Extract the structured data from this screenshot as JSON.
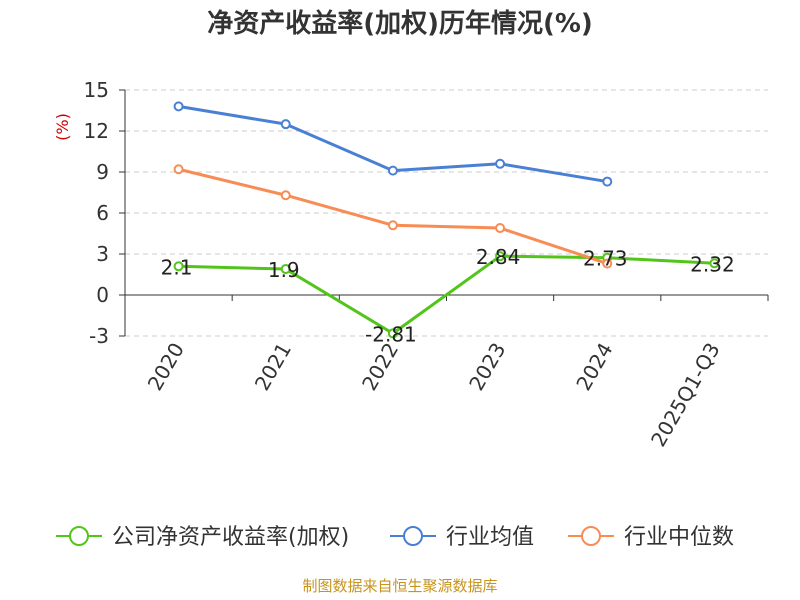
{
  "chart_data": {
    "type": "line",
    "title": "净资产收益率(加权)历年情况(%)",
    "ylabel": "(%)",
    "categories": [
      "2020",
      "2021",
      "2022",
      "2023",
      "2024",
      "2025Q1-Q3"
    ],
    "yticks": [
      "15",
      "12",
      "9",
      "6",
      "3",
      "0",
      "-3"
    ],
    "ylim": [
      -3,
      15
    ],
    "grid": true,
    "legend_position": "bottom",
    "series": [
      {
        "name": "公司净资产收益率(加权)",
        "color": "#52c41a",
        "values": [
          2.1,
          1.9,
          -2.81,
          2.84,
          2.73,
          2.32
        ],
        "labels": [
          "2.1",
          "1.9",
          "-2.81",
          "2.84",
          "2.73",
          "2.32"
        ]
      },
      {
        "name": "行业均值",
        "color": "#4a7fd6",
        "values": [
          13.8,
          12.5,
          9.1,
          9.6,
          8.3,
          null
        ]
      },
      {
        "name": "行业中位数",
        "color": "#f78c55",
        "values": [
          9.2,
          7.3,
          5.1,
          4.9,
          2.3,
          null
        ]
      }
    ]
  },
  "footer": "制图数据来自恒生聚源数据库"
}
